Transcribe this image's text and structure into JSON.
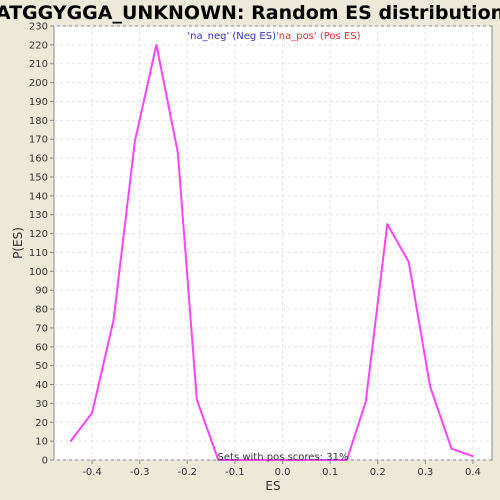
{
  "chart_data": {
    "type": "line",
    "title": "ATGGYGGA_UNKNOWN: Random ES distribution",
    "xlabel": "ES",
    "ylabel": "P(ES)",
    "xlim": [
      -0.48,
      0.44
    ],
    "ylim": [
      0,
      230
    ],
    "x_ticks": [
      -0.4,
      -0.3,
      -0.2,
      -0.1,
      0.0,
      0.1,
      0.2,
      0.3,
      0.4
    ],
    "x_tick_labels": [
      "-0.4",
      "-0.3",
      "-0.2",
      "-0.1",
      "0.0",
      "0.1",
      "0.2",
      "0.3",
      "0.4"
    ],
    "y_ticks": [
      0,
      10,
      20,
      30,
      40,
      50,
      60,
      70,
      80,
      90,
      100,
      110,
      120,
      130,
      140,
      150,
      160,
      170,
      180,
      190,
      200,
      210,
      220,
      230
    ],
    "grid": true,
    "legend": [
      {
        "label": "'na_neg' (Neg ES)",
        "color": "#3333bb"
      },
      {
        "label": "'na_pos' (Pos ES)",
        "color": "#dd3333"
      }
    ],
    "legend_position": "top-center",
    "annotation": "Sets with pos scores: 31%",
    "series": [
      {
        "color": "#ff44ff",
        "x": [
          -0.445,
          -0.4,
          -0.355,
          -0.31,
          -0.265,
          -0.22,
          -0.18,
          -0.135,
          -0.09,
          -0.045,
          0.0,
          0.045,
          0.09,
          0.135,
          0.175,
          0.22,
          0.265,
          0.31,
          0.355,
          0.4
        ],
        "y": [
          10,
          25,
          74,
          169,
          220,
          163,
          32,
          0,
          0,
          0,
          0,
          0,
          0,
          0,
          31,
          125,
          105,
          39,
          6,
          2
        ]
      }
    ]
  }
}
